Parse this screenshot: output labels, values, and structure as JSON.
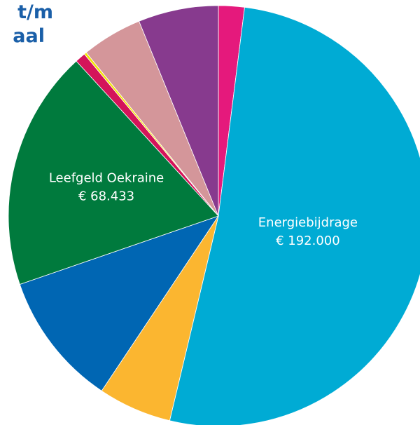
{
  "chart_data": {
    "type": "pie",
    "title": [
      "t/m",
      "aal"
    ],
    "categories": [
      null,
      "Energiebijdrage",
      null,
      null,
      "Leefgeld Oekraine",
      null,
      null,
      null,
      null
    ],
    "values": [
      7400,
      192000,
      21000,
      38400,
      68433,
      3000,
      700,
      17300,
      22900
    ],
    "value_labels": [
      null,
      "€ 192.000",
      null,
      null,
      "€ 68.433",
      null,
      null,
      null,
      null
    ],
    "colors": [
      "#e5197c",
      "#00abd4",
      "#fbb630",
      "#0066b3",
      "#007a3d",
      "#d4145a",
      "#f2e500",
      "#d4969a",
      "#873a8e"
    ]
  }
}
